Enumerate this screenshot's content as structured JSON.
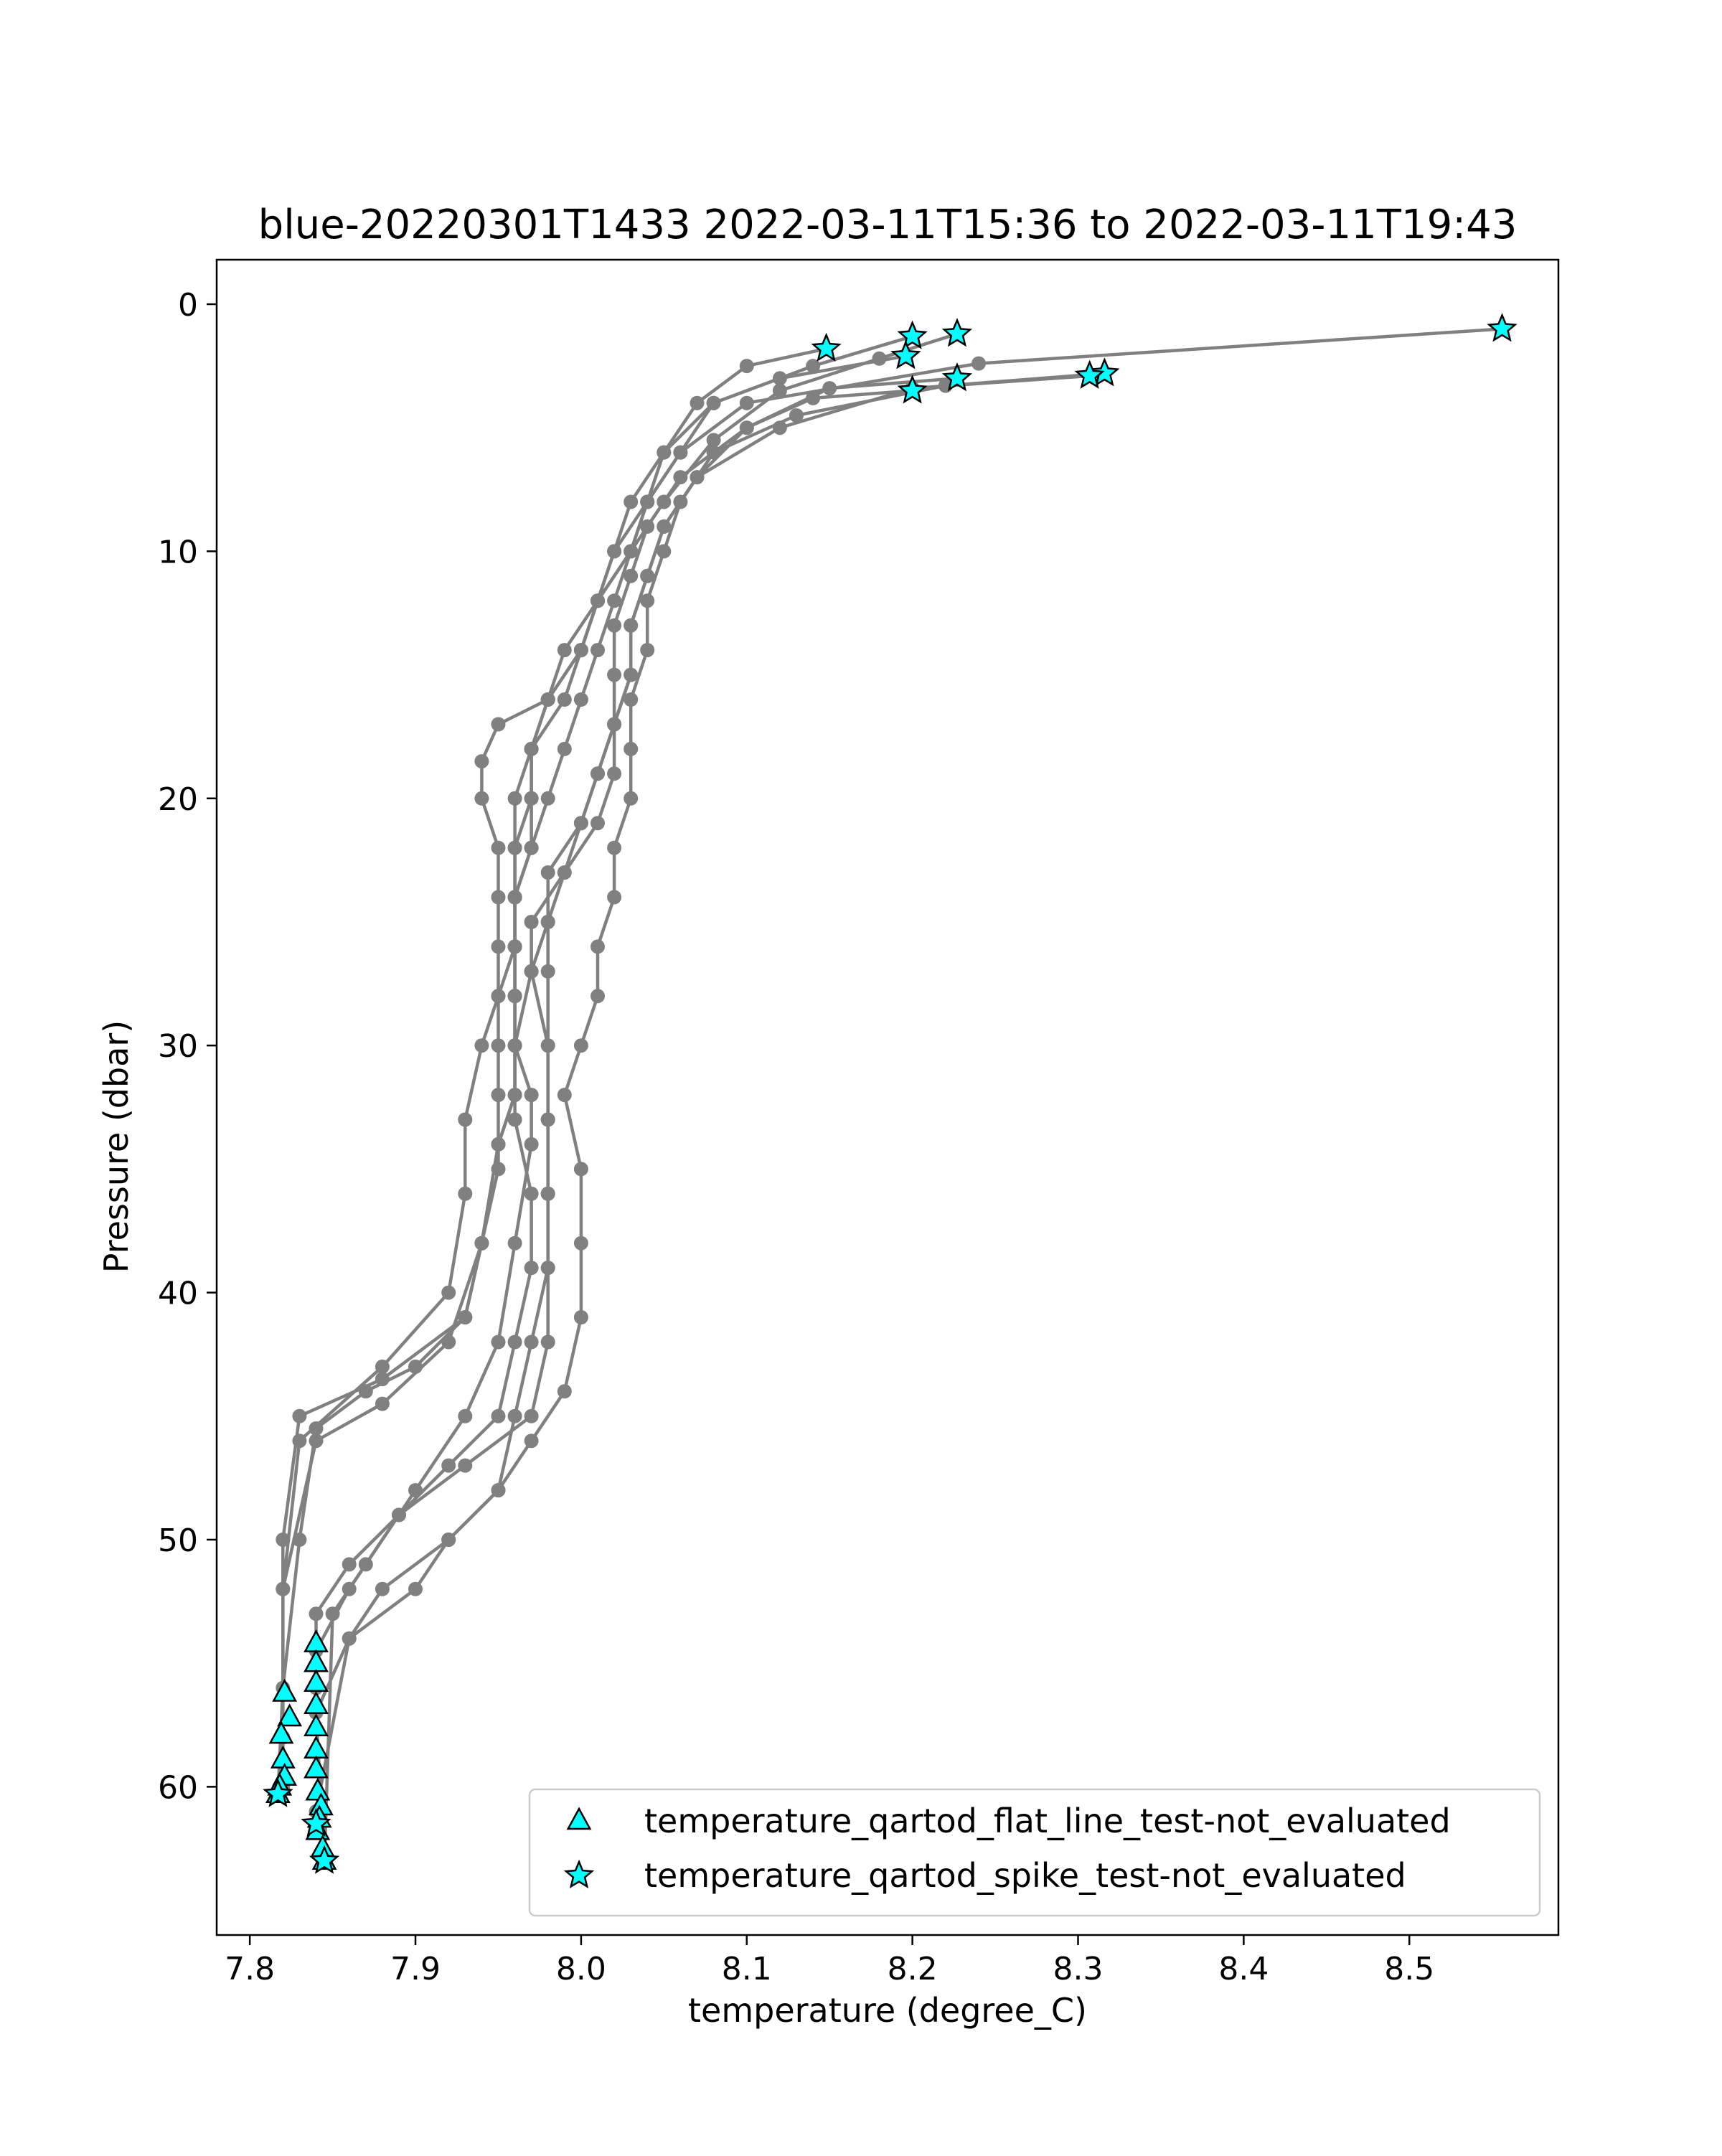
{
  "chart_data": {
    "type": "scatter",
    "title": "blue-20220301T1433 2022-03-11T15:36 to 2022-03-11T19:43",
    "xlabel": "temperature (degree_C)",
    "ylabel": "Pressure (dbar)",
    "xlim": [
      7.78,
      8.59
    ],
    "ylim": [
      66.0,
      -1.8
    ],
    "y_inverted": true,
    "grid": false,
    "x_ticks": [
      7.8,
      7.9,
      8.0,
      8.1,
      8.2,
      8.3,
      8.4,
      8.5
    ],
    "x_tick_labels": [
      "7.8",
      "7.9",
      "8.0",
      "8.1",
      "8.2",
      "8.3",
      "8.4",
      "8.5"
    ],
    "y_ticks": [
      0,
      10,
      20,
      30,
      40,
      50,
      60
    ],
    "y_tick_labels": [
      "0",
      "10",
      "20",
      "30",
      "40",
      "50",
      "60"
    ],
    "legend_position": "lower-right",
    "legend": [
      {
        "label": "temperature_qartod_flat_line_test-not_evaluated",
        "marker": "triangle"
      },
      {
        "label": "temperature_qartod_spike_test-not_evaluated",
        "marker": "star"
      }
    ],
    "colors": {
      "profile_line": "#808080",
      "flag_marker": "#00ffff",
      "marker_edge": "#000000"
    },
    "profiles": [
      {
        "t": [
          8.556,
          8.24,
          8.1,
          8.06,
          8.04,
          8.03,
          8.02,
          8.01,
          8.0,
          7.99,
          7.98,
          7.97,
          7.96,
          7.96,
          7.96,
          7.96,
          7.96,
          7.95,
          7.94,
          7.93,
          7.9,
          7.87,
          7.84,
          7.83,
          7.82,
          7.817
        ],
        "p": [
          1.0,
          2.4,
          4.0,
          6.0,
          8.0,
          10.0,
          12.0,
          14.0,
          16.0,
          18.0,
          20.0,
          22.0,
          24.0,
          26.0,
          28.0,
          30.0,
          32.0,
          34.0,
          38.0,
          41.0,
          43.0,
          44.0,
          45.5,
          50.0,
          56.0,
          60.3
        ]
      },
      {
        "t": [
          8.148,
          8.1,
          8.07,
          8.05,
          8.04,
          8.03,
          8.01,
          7.99,
          7.98,
          7.97,
          7.97,
          7.96,
          7.96,
          7.96,
          7.96,
          7.96,
          7.96,
          7.95,
          7.94,
          7.93,
          7.88,
          7.83,
          7.82,
          7.82
        ],
        "p": [
          1.8,
          2.5,
          4.0,
          6.0,
          8.0,
          10.0,
          12.0,
          14.0,
          16.0,
          18.0,
          20.0,
          22.0,
          24.0,
          26.0,
          28.0,
          30.0,
          32.0,
          34.0,
          38.0,
          41.0,
          43.5,
          45.0,
          50.0,
          59.0
        ]
      },
      {
        "t": [
          8.2,
          8.14,
          8.08,
          8.05,
          8.03,
          8.02,
          8.01,
          8.0,
          7.98,
          7.95,
          7.94,
          7.94,
          7.95,
          7.95,
          7.95,
          7.95,
          7.94,
          7.93,
          7.93,
          7.92,
          7.88,
          7.83,
          7.82,
          7.82
        ],
        "p": [
          1.3,
          2.5,
          4.0,
          6.0,
          8.0,
          10.0,
          12.0,
          14.0,
          16.0,
          17.0,
          18.5,
          20.0,
          22.0,
          24.0,
          26.0,
          28.0,
          30.0,
          33.0,
          36.0,
          40.0,
          43.0,
          46.0,
          52.0,
          58.0
        ]
      },
      {
        "t": [
          8.196,
          8.12,
          8.08,
          8.06,
          8.04,
          8.02,
          8.01,
          8.0,
          7.99,
          7.97,
          7.96,
          7.96,
          7.96,
          7.96,
          7.95,
          7.95,
          7.95,
          7.95,
          7.94,
          7.92,
          7.88,
          7.84,
          7.82,
          7.82
        ],
        "p": [
          2.1,
          3.0,
          4.0,
          6.0,
          8.0,
          10.0,
          12.0,
          14.0,
          16.0,
          18.0,
          20.0,
          22.0,
          24.0,
          26.0,
          28.0,
          30.0,
          32.0,
          35.0,
          38.0,
          42.0,
          44.5,
          46.0,
          52.0,
          60.0
        ]
      },
      {
        "t": [
          8.227,
          8.18,
          8.12,
          8.08,
          8.05,
          8.03,
          8.01,
          8.0,
          7.98,
          7.97,
          7.97,
          7.97,
          7.96,
          7.96,
          7.96,
          7.96,
          7.97,
          7.97,
          7.96,
          7.95,
          7.93,
          7.9,
          7.86,
          7.84,
          7.84
        ],
        "p": [
          1.2,
          2.2,
          3.5,
          5.5,
          8.0,
          10.0,
          12.0,
          14.0,
          16.0,
          18.0,
          20.0,
          22.0,
          24.0,
          26.0,
          28.0,
          30.0,
          32.0,
          34.0,
          38.0,
          42.0,
          45.0,
          48.0,
          52.0,
          54.5,
          56.0
        ]
      },
      {
        "t": [
          8.2,
          8.14,
          8.1,
          8.06,
          8.04,
          8.03,
          8.02,
          8.02,
          8.02,
          8.01,
          8.0,
          7.99,
          7.98,
          7.97,
          7.96,
          7.96,
          7.97,
          7.97,
          7.96,
          7.95,
          7.92,
          7.89,
          7.86,
          7.84,
          7.84
        ],
        "p": [
          3.5,
          3.8,
          5.0,
          7.0,
          9.0,
          11.0,
          13.0,
          15.0,
          17.0,
          19.0,
          21.0,
          23.0,
          25.0,
          27.0,
          30.0,
          33.0,
          36.0,
          39.0,
          42.0,
          45.0,
          47.0,
          49.0,
          51.0,
          53.0,
          56.0
        ]
      },
      {
        "t": [
          8.307,
          8.2,
          8.12,
          8.07,
          8.05,
          8.04,
          8.03,
          8.03,
          8.02,
          8.02,
          8.01,
          7.99,
          7.97,
          7.97,
          7.98,
          7.98,
          7.98,
          7.98,
          7.97,
          7.96,
          7.95,
          7.92,
          7.9,
          7.86,
          7.84
        ],
        "p": [
          2.9,
          3.4,
          5.0,
          7.0,
          9.0,
          11.0,
          13.0,
          15.0,
          17.0,
          19.0,
          21.0,
          23.0,
          25.0,
          27.0,
          30.0,
          33.0,
          36.0,
          39.0,
          42.0,
          45.0,
          48.0,
          50.0,
          52.0,
          54.0,
          61.0
        ]
      },
      {
        "t": [
          8.227,
          8.15,
          8.1,
          8.07,
          8.05,
          8.04,
          8.03,
          8.03,
          8.02,
          8.01,
          8.0,
          7.98,
          7.98,
          7.98,
          7.98,
          7.98,
          7.98,
          7.98,
          7.98,
          7.97,
          7.93,
          7.89,
          7.87,
          7.85,
          7.845
        ],
        "p": [
          3.0,
          3.4,
          5.0,
          7.0,
          9.0,
          11.0,
          13.0,
          15.0,
          17.0,
          19.0,
          21.0,
          23.0,
          25.0,
          27.0,
          30.0,
          33.0,
          36.0,
          39.0,
          42.0,
          45.0,
          47.0,
          49.0,
          51.0,
          53.0,
          63.0
        ]
      },
      {
        "t": [
          8.316,
          8.22,
          8.13,
          8.08,
          8.06,
          8.05,
          8.04,
          8.04,
          8.03,
          8.03,
          8.03,
          8.02,
          8.02,
          8.01,
          8.01,
          8.0,
          7.99,
          8.0,
          8.0,
          8.0,
          7.99,
          7.97,
          7.95,
          7.92,
          7.88,
          7.86,
          7.84,
          7.845
        ],
        "p": [
          2.8,
          3.3,
          4.5,
          6.0,
          8.0,
          10.0,
          12.0,
          14.0,
          16.0,
          18.0,
          20.0,
          22.0,
          24.0,
          26.0,
          28.0,
          30.0,
          32.0,
          35.0,
          38.0,
          41.0,
          44.0,
          46.0,
          48.0,
          50.0,
          52.0,
          54.0,
          57.0,
          63.0
        ]
      }
    ],
    "flat_line_test_points": [
      {
        "t": 7.84,
        "p": 54.2
      },
      {
        "t": 7.84,
        "p": 55.0
      },
      {
        "t": 7.84,
        "p": 55.8
      },
      {
        "t": 7.84,
        "p": 56.7
      },
      {
        "t": 7.84,
        "p": 57.6
      },
      {
        "t": 7.84,
        "p": 58.5
      },
      {
        "t": 7.84,
        "p": 59.3
      },
      {
        "t": 7.841,
        "p": 60.2
      },
      {
        "t": 7.843,
        "p": 60.8
      },
      {
        "t": 7.842,
        "p": 61.3
      },
      {
        "t": 7.841,
        "p": 61.8
      },
      {
        "t": 7.844,
        "p": 62.5
      },
      {
        "t": 7.845,
        "p": 63.0
      },
      {
        "t": 7.821,
        "p": 56.2
      },
      {
        "t": 7.824,
        "p": 57.2
      },
      {
        "t": 7.819,
        "p": 57.9
      },
      {
        "t": 7.82,
        "p": 58.9
      },
      {
        "t": 7.821,
        "p": 59.6
      },
      {
        "t": 7.818,
        "p": 60.0
      },
      {
        "t": 7.817,
        "p": 60.3
      }
    ],
    "spike_test_points": [
      {
        "t": 8.556,
        "p": 1.0
      },
      {
        "t": 8.227,
        "p": 1.2
      },
      {
        "t": 8.2,
        "p": 1.3
      },
      {
        "t": 8.148,
        "p": 1.8
      },
      {
        "t": 8.196,
        "p": 2.1
      },
      {
        "t": 8.316,
        "p": 2.8
      },
      {
        "t": 8.307,
        "p": 2.9
      },
      {
        "t": 8.227,
        "p": 3.0
      },
      {
        "t": 8.2,
        "p": 3.5
      },
      {
        "t": 7.84,
        "p": 61.5
      },
      {
        "t": 7.845,
        "p": 63.0
      },
      {
        "t": 7.817,
        "p": 60.3
      }
    ]
  }
}
